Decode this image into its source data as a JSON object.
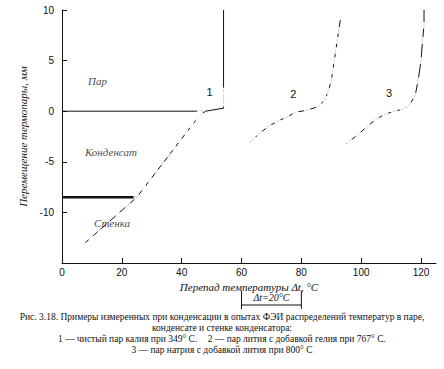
{
  "chart_data": {
    "type": "line",
    "xlabel": "Перепад температуры Δt, °C",
    "ylabel": "Перемещение термопары, мм",
    "xlim": [
      0,
      125
    ],
    "xticks": [
      0,
      20,
      40,
      60,
      80,
      100,
      120
    ],
    "ylim": [
      -15,
      10
    ],
    "yticks": [
      -10,
      -5,
      0,
      5,
      10
    ],
    "grid": false,
    "color": "#111111",
    "marker": "circle",
    "series": [
      {
        "name": "1",
        "description": "1 — чистый пар калия при 349° С.",
        "line": {
          "x": [
            7,
            25,
            46,
            48,
            54,
            54
          ],
          "y": [
            -13.2,
            -8.5,
            -0.4,
            0,
            0.3,
            10
          ]
        },
        "points": {
          "x": [
            7,
            10,
            13,
            16,
            19,
            22,
            25,
            27,
            29,
            31,
            33,
            35,
            37,
            39,
            41,
            43,
            45,
            46,
            54,
            54,
            54
          ],
          "y": [
            -13.2,
            -12.6,
            -12,
            -11.2,
            -10.3,
            -9.3,
            -8.5,
            -7.5,
            -6.7,
            -5.8,
            -5,
            -4.2,
            -3.5,
            -2.8,
            -2,
            -1.3,
            -0.6,
            -0.2,
            0.8,
            1.5,
            2
          ]
        }
      },
      {
        "name": "2",
        "description": "2 — пар лития с добавкой гелия при 767° С.",
        "line": {
          "x": [
            63,
            66,
            69,
            72,
            75,
            78,
            82,
            86,
            88,
            89,
            90,
            91,
            92,
            93
          ],
          "y": [
            -3,
            -2.2,
            -1.5,
            -1,
            -0.6,
            -0.1,
            0.1,
            0.5,
            1.2,
            2,
            3,
            5,
            7,
            9
          ]
        },
        "points": {
          "x": [
            64,
            66,
            69,
            72,
            75,
            78,
            82,
            86,
            88,
            89,
            90,
            90.5,
            91,
            91.5,
            92,
            92.5
          ],
          "y": [
            -2.8,
            -2.2,
            -1.5,
            -1,
            -0.6,
            -0.1,
            0.1,
            0.5,
            1.2,
            2,
            3,
            4,
            5,
            6,
            7,
            8
          ]
        }
      },
      {
        "name": "3",
        "description": "3 — пар натрия с добавкой лития при 800° С",
        "line": {
          "x": [
            95,
            99,
            102,
            105,
            108,
            111,
            114,
            116,
            118,
            119,
            120,
            120.5,
            121,
            121
          ],
          "y": [
            -3.2,
            -2.3,
            -1.5,
            -0.8,
            -0.3,
            0,
            0.2,
            0.6,
            1.5,
            3,
            5,
            7,
            8.5,
            10
          ]
        },
        "points": {
          "x": [
            96,
            99,
            102,
            105,
            108,
            111,
            114,
            116,
            118,
            119,
            120,
            120.5,
            121
          ],
          "y": [
            -3,
            -2.3,
            -1.5,
            -0.8,
            -0.3,
            0,
            0.2,
            0.6,
            1.5,
            3,
            5,
            7,
            8.5
          ]
        }
      }
    ],
    "annotations": [
      {
        "text": "Пар",
        "x": 7,
        "y": 3
      },
      {
        "text": "Конденсат",
        "x": 6,
        "y": -4
      },
      {
        "text": "Стенка",
        "x": 9,
        "y": -11
      }
    ],
    "interfaces": [
      {
        "y": 0,
        "x_end": 47
      },
      {
        "y": -8.5,
        "x_end": 25
      }
    ],
    "scale_bar": {
      "from": 60,
      "to": 80,
      "label": "Δt=20°C"
    },
    "caption": "Рис. 3.18. Примеры измеренных при конденсации в опытах ФЭИ распределений температур в паре, конденсате и стенке конденсатора:"
  }
}
